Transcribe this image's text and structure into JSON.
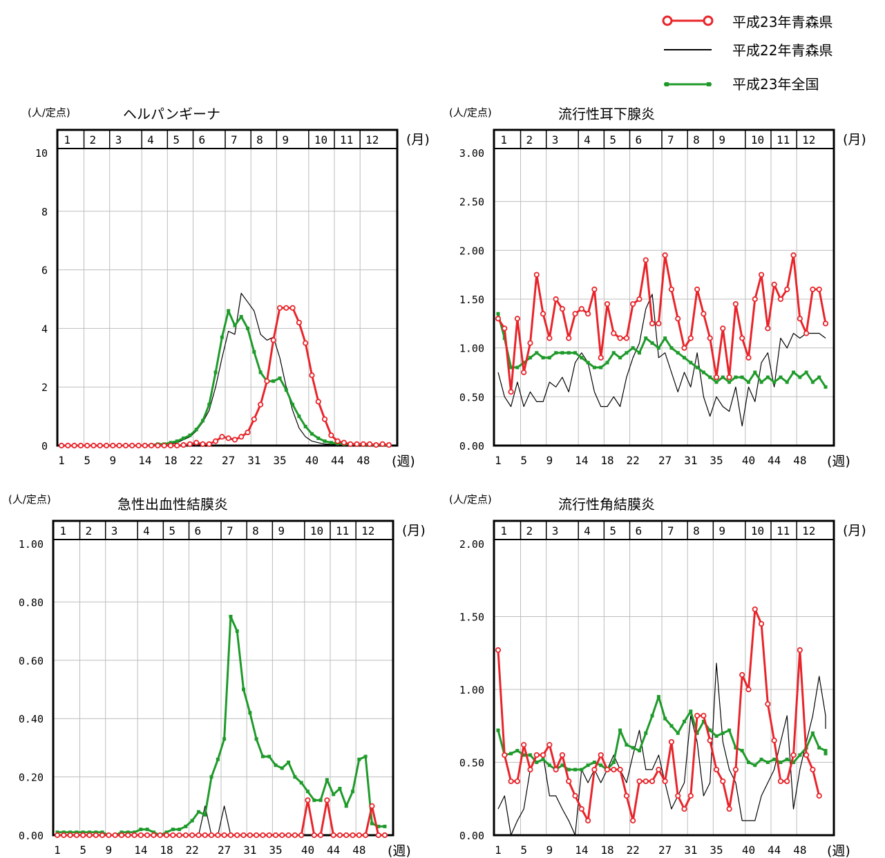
{
  "legend": [
    {
      "label": "平成23年青森県",
      "color": "#e8242a",
      "marker": "circle"
    },
    {
      "label": "平成22年青森県",
      "color": "#000000",
      "marker": "none"
    },
    {
      "label": "平成23年全国",
      "color": "#1e9a2a",
      "marker": "square"
    }
  ],
  "axis_text": {
    "unit": "(人/定点)",
    "month": "(月)",
    "week": "(週)"
  },
  "chart_data": [
    {
      "type": "line",
      "title": "ヘルパンギーナ",
      "ylabel": "(人/定点)",
      "xlabel": "(週)",
      "month_label": "(月)",
      "ylim": [
        0,
        10
      ],
      "yticks": [
        "0",
        "2",
        "4",
        "6",
        "8",
        "10"
      ],
      "xticks": [
        "1",
        "5",
        "9",
        "14",
        "18",
        "22",
        "27",
        "31",
        "35",
        "40",
        "44",
        "48"
      ],
      "months": [
        "1",
        "2",
        "3",
        "4",
        "5",
        "6",
        "7",
        "8",
        "9",
        "10",
        "11",
        "12"
      ],
      "series": [
        {
          "name": "平成23年青森県",
          "values": [
            0,
            0,
            0,
            0,
            0,
            0,
            0,
            0,
            0,
            0,
            0,
            0,
            0,
            0,
            0,
            0,
            0,
            0,
            0,
            0.02,
            0.05,
            0.1,
            0.05,
            0.05,
            0.15,
            0.3,
            0.25,
            0.2,
            0.3,
            0.45,
            0.9,
            1.4,
            2.2,
            3.6,
            4.7,
            4.7,
            4.7,
            4.2,
            3.5,
            2.4,
            1.5,
            0.9,
            0.35,
            0.15,
            0.1,
            0.05,
            0.05,
            0.05,
            0.05,
            0.02,
            0.05,
            0.02
          ]
        },
        {
          "name": "平成22年青森県",
          "values": [
            0,
            0,
            0,
            0,
            0,
            0,
            0,
            0,
            0,
            0,
            0,
            0,
            0,
            0,
            0,
            0,
            0,
            0.05,
            0.1,
            0.2,
            0.3,
            0.5,
            0.8,
            1.2,
            2.0,
            3.0,
            3.9,
            3.8,
            5.2,
            4.9,
            4.6,
            3.8,
            3.6,
            3.7,
            3.0,
            2.0,
            1.2,
            0.6,
            0.3,
            0.15,
            0.1,
            0.05,
            0.05,
            0.02,
            0.02,
            0.02,
            0.02,
            0.02,
            0,
            0,
            0,
            0
          ]
        },
        {
          "name": "平成23年全国",
          "values": [
            0,
            0,
            0,
            0,
            0,
            0,
            0,
            0,
            0,
            0,
            0,
            0,
            0,
            0,
            0.02,
            0.05,
            0.05,
            0.1,
            0.15,
            0.25,
            0.35,
            0.55,
            0.85,
            1.4,
            2.5,
            3.7,
            4.6,
            4.1,
            4.4,
            4.0,
            3.2,
            2.5,
            2.2,
            2.2,
            2.3,
            1.9,
            1.4,
            1.0,
            0.65,
            0.4,
            0.25,
            0.15,
            0.1,
            0.07,
            0.05,
            0.05,
            0.03,
            0.03,
            0.02,
            0.02,
            0.02,
            0.01
          ]
        }
      ]
    },
    {
      "type": "line",
      "title": "流行性耳下腺炎",
      "ylabel": "(人/定点)",
      "xlabel": "(週)",
      "month_label": "(月)",
      "ylim": [
        0,
        3
      ],
      "yticks": [
        "0.00",
        "0.50",
        "1.00",
        "1.50",
        "2.00",
        "2.50",
        "3.00"
      ],
      "xticks": [
        "1",
        "5",
        "9",
        "14",
        "18",
        "22",
        "27",
        "31",
        "35",
        "40",
        "44",
        "48"
      ],
      "months": [
        "1",
        "2",
        "3",
        "4",
        "5",
        "6",
        "7",
        "8",
        "9",
        "10",
        "11",
        "12"
      ],
      "series": [
        {
          "name": "平成23年青森県",
          "values": [
            1.3,
            1.2,
            0.55,
            1.3,
            0.75,
            1.05,
            1.75,
            1.35,
            1.1,
            1.5,
            1.4,
            1.1,
            1.35,
            1.4,
            1.35,
            1.6,
            0.9,
            1.45,
            1.15,
            1.1,
            1.1,
            1.45,
            1.5,
            1.9,
            1.25,
            1.25,
            1.95,
            1.6,
            1.3,
            1.0,
            1.1,
            1.6,
            1.35,
            1.1,
            0.7,
            1.2,
            0.7,
            1.45,
            1.1,
            0.9,
            1.5,
            1.75,
            1.2,
            1.65,
            1.5,
            1.6,
            1.95,
            1.3,
            1.15,
            1.6,
            1.6,
            1.25
          ]
        },
        {
          "name": "平成22年青森県",
          "values": [
            0.75,
            0.5,
            0.4,
            0.65,
            0.4,
            0.55,
            0.45,
            0.45,
            0.65,
            0.6,
            0.7,
            0.55,
            0.85,
            0.95,
            0.85,
            0.55,
            0.4,
            0.4,
            0.5,
            0.4,
            0.7,
            0.9,
            1.05,
            1.4,
            1.55,
            0.9,
            0.95,
            0.75,
            0.55,
            0.75,
            0.6,
            0.95,
            0.5,
            0.3,
            0.5,
            0.4,
            0.35,
            0.6,
            0.2,
            0.6,
            0.45,
            0.85,
            0.95,
            0.6,
            1.1,
            1.0,
            1.15,
            1.1,
            1.15,
            1.15,
            1.15,
            1.1
          ]
        },
        {
          "name": "平成23年全国",
          "values": [
            1.35,
            1.1,
            0.8,
            0.8,
            0.85,
            0.9,
            0.95,
            0.9,
            0.9,
            0.95,
            0.95,
            0.95,
            0.95,
            0.9,
            0.85,
            0.8,
            0.8,
            0.85,
            0.95,
            0.9,
            0.95,
            1.0,
            0.95,
            1.1,
            1.05,
            1.0,
            1.1,
            1.0,
            0.95,
            0.9,
            0.85,
            0.8,
            0.75,
            0.7,
            0.65,
            0.7,
            0.65,
            0.7,
            0.7,
            0.65,
            0.75,
            0.65,
            0.7,
            0.65,
            0.7,
            0.65,
            0.75,
            0.7,
            0.75,
            0.65,
            0.7,
            0.6
          ]
        }
      ]
    },
    {
      "type": "line",
      "title": "急性出血性結膜炎",
      "ylabel": "(人/定点)",
      "xlabel": "(週)",
      "month_label": "(月)",
      "ylim": [
        0,
        1
      ],
      "yticks": [
        "0.00",
        "0.20",
        "0.40",
        "0.60",
        "0.80",
        "1.00"
      ],
      "xticks": [
        "1",
        "5",
        "9",
        "14",
        "18",
        "22",
        "27",
        "31",
        "35",
        "40",
        "44",
        "48"
      ],
      "months": [
        "1",
        "2",
        "3",
        "4",
        "5",
        "6",
        "7",
        "8",
        "9",
        "10",
        "11",
        "12"
      ],
      "series": [
        {
          "name": "平成23年青森県",
          "values": [
            0,
            0,
            0,
            0,
            0,
            0,
            0,
            0,
            0,
            0,
            0,
            0,
            0,
            0,
            0,
            0,
            0,
            0,
            0,
            0,
            0,
            0,
            0,
            0,
            0,
            0,
            0,
            0,
            0,
            0,
            0,
            0,
            0,
            0,
            0,
            0,
            0,
            0,
            0,
            0.12,
            0,
            0,
            0.12,
            0,
            0,
            0,
            0,
            0,
            0,
            0.1,
            0,
            0
          ]
        },
        {
          "name": "平成22年青森県",
          "values": [
            0,
            0,
            0,
            0,
            0,
            0,
            0,
            0,
            0,
            0,
            0,
            0,
            0,
            0,
            0,
            0,
            0,
            0,
            0,
            0,
            0,
            0,
            0,
            0.1,
            0,
            0,
            0.1,
            0,
            0,
            0,
            0,
            0,
            0,
            0,
            0,
            0,
            0,
            0,
            0,
            0,
            0,
            0,
            0,
            0,
            0,
            0,
            0,
            0,
            0,
            0,
            0,
            0
          ]
        },
        {
          "name": "平成23年全国",
          "values": [
            0.01,
            0.01,
            0.01,
            0.01,
            0.01,
            0.01,
            0.01,
            0.01,
            0,
            0,
            0.01,
            0.01,
            0.01,
            0.02,
            0.02,
            0.01,
            0,
            0.01,
            0.02,
            0.02,
            0.03,
            0.05,
            0.08,
            0.07,
            0.2,
            0.26,
            0.33,
            0.75,
            0.7,
            0.5,
            0.42,
            0.33,
            0.27,
            0.27,
            0.24,
            0.23,
            0.25,
            0.2,
            0.18,
            0.15,
            0.12,
            0.12,
            0.19,
            0.14,
            0.16,
            0.1,
            0.15,
            0.26,
            0.27,
            0.04,
            0.03,
            0.03
          ]
        }
      ]
    },
    {
      "type": "line",
      "title": "流行性角結膜炎",
      "ylabel": "(人/定点)",
      "xlabel": "(週)",
      "month_label": "(月)",
      "ylim": [
        0,
        2
      ],
      "yticks": [
        "0.00",
        "0.50",
        "1.00",
        "1.50",
        "2.00"
      ],
      "xticks": [
        "1",
        "5",
        "9",
        "14",
        "18",
        "22",
        "27",
        "31",
        "35",
        "40",
        "44",
        "48"
      ],
      "months": [
        "1",
        "2",
        "3",
        "4",
        "5",
        "6",
        "7",
        "8",
        "9",
        "10",
        "11",
        "12"
      ],
      "series": [
        {
          "name": "平成23年青森県",
          "values": [
            1.27,
            0.55,
            0.37,
            0.37,
            0.62,
            0.45,
            0.55,
            0.55,
            0.62,
            0.45,
            0.55,
            0.37,
            0.27,
            0.18,
            0.1,
            0.45,
            0.55,
            0.45,
            0.45,
            0.45,
            0.27,
            0.1,
            0.37,
            0.37,
            0.37,
            0.45,
            0.37,
            0.64,
            0.27,
            0.18,
            0.27,
            0.82,
            0.82,
            0.65,
            0.45,
            0.37,
            0.18,
            0.45,
            1.1,
            1.0,
            1.55,
            1.45,
            0.9,
            0.65,
            0.37,
            0.37,
            0.55,
            1.27,
            0.55,
            0.45,
            0.27
          ]
        },
        {
          "name": "平成22年青森県",
          "values": [
            0.18,
            0.27,
            0,
            0.1,
            0.18,
            0.45,
            0.55,
            0.55,
            0.27,
            0.27,
            0.18,
            0.1,
            0,
            0.45,
            0.36,
            0.45,
            0.36,
            0.45,
            0.55,
            0.45,
            0.36,
            0.55,
            0.72,
            0.45,
            0.45,
            0.55,
            0.36,
            0.18,
            0.27,
            0.36,
            0.82,
            0.64,
            0.27,
            0.36,
            1.18,
            0.64,
            0.45,
            0.36,
            0.1,
            0.1,
            0.1,
            0.27,
            0.36,
            0.45,
            0.64,
            0.82,
            0.18,
            0.45,
            0.64,
            0.82,
            1.09,
            0.82,
            0.73
          ]
        },
        {
          "name": "平成23年全国",
          "values": [
            0.72,
            0.55,
            0.56,
            0.58,
            0.55,
            0.55,
            0.5,
            0.52,
            0.48,
            0.45,
            0.48,
            0.45,
            0.45,
            0.45,
            0.48,
            0.5,
            0.48,
            0.45,
            0.5,
            0.72,
            0.62,
            0.6,
            0.58,
            0.7,
            0.82,
            0.95,
            0.8,
            0.75,
            0.7,
            0.78,
            0.85,
            0.7,
            0.78,
            0.72,
            0.68,
            0.7,
            0.72,
            0.6,
            0.58,
            0.5,
            0.48,
            0.52,
            0.5,
            0.52,
            0.5,
            0.52,
            0.5,
            0.55,
            0.6,
            0.7,
            0.6,
            0.58,
            0.56
          ]
        }
      ]
    }
  ]
}
